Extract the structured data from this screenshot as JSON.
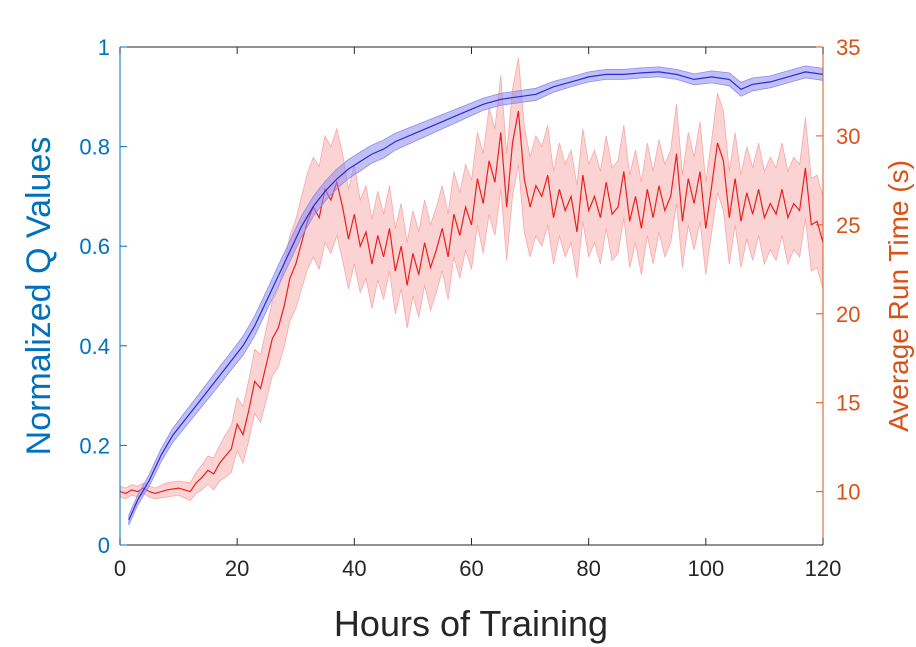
{
  "chart_data": {
    "type": "line",
    "xlabel": "Hours of Training",
    "ylabel_left": "Normalized Q Values",
    "ylabel_right": "Average Run Time (s)",
    "xlim": [
      0,
      120
    ],
    "ylim_left": [
      0,
      1
    ],
    "ylim_right": [
      7,
      35
    ],
    "x_ticks": [
      "0",
      "20",
      "40",
      "60",
      "80",
      "100",
      "120"
    ],
    "y_left_ticks": [
      "0",
      "0.2",
      "0.4",
      "0.6",
      "0.8",
      "1"
    ],
    "y_right_ticks": [
      "10",
      "15",
      "20",
      "25",
      "30",
      "35"
    ],
    "grid": false,
    "colors": {
      "left_axis": "#0072BD",
      "right_axis": "#D95319",
      "q_line": "#2B2BD9",
      "q_band": "#8C8CF0",
      "runtime_line": "#E8201F",
      "runtime_band": "#F7A8A8",
      "axis_dark": "#262626"
    },
    "series": [
      {
        "axis": "left",
        "x": [
          1.5,
          3,
          5,
          7,
          9,
          11,
          13,
          15,
          17,
          19,
          21,
          23,
          25,
          27,
          29,
          31,
          33,
          35,
          37,
          39,
          41,
          43,
          45,
          47,
          50,
          53,
          56,
          59,
          62,
          65,
          68,
          71,
          74,
          77,
          80,
          83,
          86,
          89,
          92,
          95,
          98,
          101,
          104,
          106,
          108,
          111,
          114,
          117,
          120
        ],
        "values": [
          0.05,
          0.09,
          0.13,
          0.18,
          0.22,
          0.25,
          0.28,
          0.31,
          0.34,
          0.37,
          0.4,
          0.44,
          0.49,
          0.54,
          0.59,
          0.64,
          0.68,
          0.71,
          0.735,
          0.755,
          0.77,
          0.785,
          0.795,
          0.81,
          0.825,
          0.84,
          0.855,
          0.87,
          0.885,
          0.895,
          0.9,
          0.905,
          0.92,
          0.93,
          0.94,
          0.945,
          0.945,
          0.948,
          0.95,
          0.945,
          0.935,
          0.94,
          0.935,
          0.915,
          0.925,
          0.93,
          0.94,
          0.95,
          0.945
        ],
        "band": [
          0.01,
          0.01,
          0.012,
          0.013,
          0.014,
          0.015,
          0.016,
          0.017,
          0.018,
          0.018,
          0.019,
          0.02,
          0.02,
          0.021,
          0.021,
          0.021,
          0.02,
          0.02,
          0.02,
          0.019,
          0.019,
          0.018,
          0.018,
          0.017,
          0.016,
          0.015,
          0.014,
          0.013,
          0.012,
          0.012,
          0.012,
          0.012,
          0.011,
          0.01,
          0.01,
          0.01,
          0.01,
          0.01,
          0.01,
          0.01,
          0.011,
          0.012,
          0.013,
          0.014,
          0.013,
          0.012,
          0.012,
          0.012,
          0.012
        ]
      },
      {
        "axis": "right",
        "x": [
          0,
          1,
          2,
          3,
          4,
          5,
          6,
          8,
          10,
          12,
          13,
          14,
          15,
          16,
          17,
          18,
          19,
          20,
          21,
          22,
          23,
          24,
          25,
          26,
          27,
          28,
          29,
          30,
          31,
          32,
          33,
          34,
          35,
          36,
          37,
          38,
          39,
          40,
          41,
          42,
          43,
          44,
          45,
          46,
          47,
          48,
          49,
          50,
          51,
          52,
          53,
          54,
          55,
          56,
          57,
          58,
          59,
          60,
          61,
          62,
          63,
          64,
          65,
          66,
          67,
          68,
          69,
          70,
          71,
          72,
          73,
          74,
          75,
          76,
          77,
          78,
          79,
          80,
          81,
          82,
          83,
          84,
          85,
          86,
          87,
          88,
          89,
          90,
          91,
          92,
          93,
          94,
          95,
          96,
          97,
          98,
          99,
          100,
          101,
          102,
          103,
          104,
          105,
          106,
          107,
          108,
          109,
          110,
          111,
          112,
          113,
          114,
          115,
          116,
          117,
          118,
          119,
          120
        ],
        "values": [
          10.0,
          9.9,
          10.1,
          10.0,
          10.2,
          10.0,
          9.9,
          10.1,
          10.2,
          10.0,
          10.5,
          10.8,
          11.2,
          11.0,
          11.6,
          12.0,
          12.4,
          13.8,
          13.2,
          14.6,
          16.2,
          15.8,
          17.2,
          18.6,
          19.2,
          20.4,
          22.0,
          22.8,
          24.0,
          25.2,
          26.0,
          25.4,
          27.0,
          26.4,
          27.4,
          26.0,
          24.2,
          25.6,
          23.8,
          24.6,
          22.8,
          24.4,
          23.2,
          24.8,
          22.4,
          23.8,
          21.6,
          23.4,
          22.2,
          24.0,
          22.6,
          23.6,
          24.8,
          23.2,
          25.6,
          24.4,
          26.0,
          25.0,
          27.6,
          26.2,
          28.6,
          27.4,
          30.2,
          26.0,
          29.6,
          31.4,
          27.6,
          26.0,
          27.2,
          26.6,
          27.8,
          25.4,
          27.0,
          25.8,
          26.6,
          24.6,
          27.8,
          25.8,
          26.6,
          25.4,
          27.4,
          25.6,
          26.0,
          28.0,
          25.2,
          26.6,
          24.8,
          27.0,
          25.4,
          27.2,
          25.8,
          26.6,
          29.0,
          25.2,
          27.6,
          26.2,
          28.0,
          24.8,
          27.2,
          29.6,
          28.6,
          25.4,
          27.6,
          25.2,
          26.8,
          25.6,
          27.0,
          25.4,
          26.2,
          25.6,
          27.0,
          25.4,
          26.2,
          25.8,
          28.2,
          25.0,
          25.2,
          24.0
        ],
        "band": [
          0.3,
          0.3,
          0.3,
          0.3,
          0.3,
          0.3,
          0.3,
          0.4,
          0.4,
          0.5,
          0.6,
          0.7,
          0.8,
          0.9,
          1.0,
          1.2,
          1.3,
          1.5,
          1.6,
          1.7,
          1.8,
          1.9,
          2.0,
          2.1,
          2.2,
          2.3,
          2.4,
          2.5,
          2.6,
          2.7,
          2.8,
          2.9,
          3.0,
          3.0,
          3.0,
          3.0,
          2.8,
          2.8,
          2.6,
          2.6,
          2.5,
          2.5,
          2.4,
          2.4,
          2.4,
          2.4,
          2.4,
          2.4,
          2.4,
          2.4,
          2.4,
          2.4,
          2.4,
          2.4,
          2.4,
          2.4,
          2.4,
          2.5,
          2.6,
          2.8,
          3.0,
          3.0,
          3.2,
          3.0,
          3.0,
          3.0,
          3.0,
          2.8,
          2.8,
          2.8,
          2.8,
          2.6,
          2.6,
          2.6,
          2.6,
          2.6,
          2.6,
          2.6,
          2.6,
          2.6,
          2.6,
          2.6,
          2.6,
          2.6,
          2.6,
          2.6,
          2.6,
          2.6,
          2.6,
          2.6,
          2.6,
          2.6,
          2.8,
          2.6,
          2.6,
          2.6,
          2.8,
          2.6,
          2.6,
          2.8,
          2.8,
          2.6,
          2.6,
          2.6,
          2.6,
          2.6,
          2.6,
          2.6,
          2.6,
          2.6,
          2.6,
          2.6,
          2.6,
          2.6,
          2.8,
          2.6,
          2.6,
          2.6
        ]
      }
    ]
  }
}
